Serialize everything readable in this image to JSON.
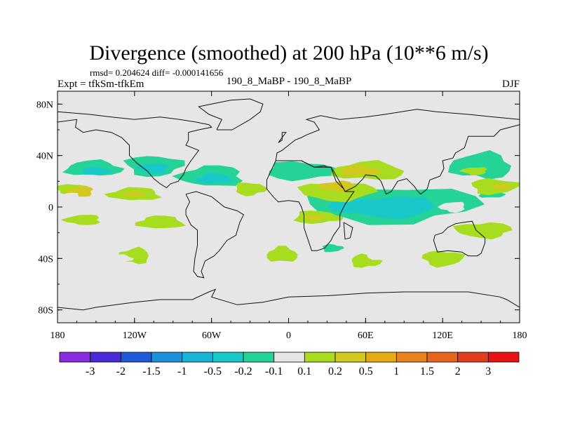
{
  "chart_data": {
    "type": "heatmap",
    "title": "Divergence (smoothed) at 200 hPa (10**6 m/s)",
    "stats_label": "rmsd= 0.204624  diff= -0.000141656",
    "left_label": "Expt = tfkSm-tfkEm",
    "center_label": "190_8_MaBP - 190_8_MaBP",
    "right_label": "DJF",
    "x_range": [
      -180,
      180
    ],
    "y_range": [
      -90,
      90
    ],
    "x_ticks": [
      {
        "value": -180,
        "label": "180"
      },
      {
        "value": -120,
        "label": "120W"
      },
      {
        "value": -60,
        "label": "60W"
      },
      {
        "value": 0,
        "label": "0"
      },
      {
        "value": 60,
        "label": "60E"
      },
      {
        "value": 120,
        "label": "120E"
      },
      {
        "value": 180,
        "label": "180"
      }
    ],
    "y_ticks": [
      {
        "value": 80,
        "label": "80N"
      },
      {
        "value": 40,
        "label": "40N"
      },
      {
        "value": 0,
        "label": "0"
      },
      {
        "value": -40,
        "label": "40S"
      },
      {
        "value": -80,
        "label": "80S"
      }
    ],
    "colorbar": {
      "colors": [
        "#8a2be2",
        "#4b2bd9",
        "#1e5ad6",
        "#1e90dc",
        "#18b4d6",
        "#19c8c8",
        "#26d396",
        "#e6e6e6",
        "#a8dc1e",
        "#d2c81e",
        "#e6aa14",
        "#e8821e",
        "#e6641e",
        "#e03c1e",
        "#e61414"
      ],
      "labels": [
        "-3",
        "-2",
        "-1.5",
        "-1",
        "-0.5",
        "-0.2",
        "-0.1",
        "0.1",
        "0.2",
        "0.5",
        "1",
        "1.5",
        "2",
        "3"
      ]
    },
    "regions": [
      {
        "level": "-0.2",
        "lon": -152,
        "lat": 30,
        "rlon": 22,
        "rlat": 6
      },
      {
        "level": "-0.5",
        "lon": -150,
        "lat": 28,
        "rlon": 12,
        "rlat": 3
      },
      {
        "level": "-0.2",
        "lon": -105,
        "lat": 32,
        "rlon": 22,
        "rlat": 8
      },
      {
        "level": "-0.5",
        "lon": -105,
        "lat": 30,
        "rlon": 12,
        "rlat": 4
      },
      {
        "level": "-0.2",
        "lon": -60,
        "lat": 24,
        "rlon": 25,
        "rlat": 8
      },
      {
        "level": "-0.5",
        "lon": -58,
        "lat": 22,
        "rlon": 14,
        "rlat": 4
      },
      {
        "level": "-0.2",
        "lon": 10,
        "lat": 28,
        "rlon": 28,
        "rlat": 7
      },
      {
        "level": "-0.2",
        "lon": 80,
        "lat": 2,
        "rlon": 68,
        "rlat": 14
      },
      {
        "level": "-0.5",
        "lon": 75,
        "lat": 0,
        "rlon": 42,
        "rlat": 8
      },
      {
        "level": "-0.2",
        "lon": 150,
        "lat": 32,
        "rlon": 24,
        "rlat": 10
      },
      {
        "level": "-0.2",
        "lon": 158,
        "lat": 10,
        "rlon": 10,
        "rlat": 3
      },
      {
        "level": "-0.2",
        "lon": 34,
        "lat": -32,
        "rlon": 8,
        "rlat": 3
      },
      {
        "level": "0.2",
        "lon": -170,
        "lat": 14,
        "rlon": 12,
        "rlat": 4
      },
      {
        "level": "0.5",
        "lon": -162,
        "lat": 12,
        "rlon": 10,
        "rlat": 4
      },
      {
        "level": "0.2",
        "lon": -120,
        "lat": 10,
        "rlon": 20,
        "rlat": 5
      },
      {
        "level": "0.5",
        "lon": -120,
        "lat": 10,
        "rlon": 8,
        "rlat": 2
      },
      {
        "level": "0.2",
        "lon": -30,
        "lat": 14,
        "rlon": 12,
        "rlat": 5
      },
      {
        "level": "0.2",
        "lon": 38,
        "lat": 12,
        "rlon": 30,
        "rlat": 7
      },
      {
        "level": "0.5",
        "lon": 38,
        "lat": 16,
        "rlon": 14,
        "rlat": 4
      },
      {
        "level": "0.2",
        "lon": 62,
        "lat": 28,
        "rlon": 28,
        "rlat": 7
      },
      {
        "level": "0.5",
        "lon": 55,
        "lat": 28,
        "rlon": 15,
        "rlat": 4
      },
      {
        "level": "0.2",
        "lon": 160,
        "lat": 16,
        "rlon": 18,
        "rlat": 6
      },
      {
        "level": "0.5",
        "lon": 166,
        "lat": 16,
        "rlon": 8,
        "rlat": 2
      },
      {
        "level": "0.2",
        "lon": -160,
        "lat": -10,
        "rlon": 14,
        "rlat": 4
      },
      {
        "level": "0.2",
        "lon": -100,
        "lat": -12,
        "rlon": 18,
        "rlat": 5
      },
      {
        "level": "0.2",
        "lon": 22,
        "lat": -8,
        "rlon": 18,
        "rlat": 5
      },
      {
        "level": "0.5",
        "lon": 20,
        "lat": -8,
        "rlon": 8,
        "rlat": 2
      },
      {
        "level": "0.2",
        "lon": 152,
        "lat": -18,
        "rlon": 22,
        "rlat": 6
      },
      {
        "level": "0.2",
        "lon": -120,
        "lat": -38,
        "rlon": 12,
        "rlat": 6
      },
      {
        "level": "0.2",
        "lon": -5,
        "lat": -37,
        "rlon": 12,
        "rlat": 6
      },
      {
        "level": "0.2",
        "lon": 60,
        "lat": -42,
        "rlon": 12,
        "rlat": 5
      },
      {
        "level": "0.2",
        "lon": 120,
        "lat": -40,
        "rlon": 16,
        "rlat": 6
      },
      {
        "level": "0.2",
        "lon": 145,
        "lat": 28,
        "rlon": 10,
        "rlat": 3
      },
      {
        "level": "-0.1",
        "lon": -170,
        "lat": 8,
        "rlon": 8,
        "rlat": 3
      },
      {
        "level": "0.1",
        "lon": 30,
        "lat": 48,
        "rlon": 30,
        "rlat": 5
      },
      {
        "level": "0.1",
        "lon": 110,
        "lat": 52,
        "rlon": 15,
        "rlat": 4
      },
      {
        "level": "0.1",
        "lon": -75,
        "lat": 52,
        "rlon": 15,
        "rlat": 4
      },
      {
        "level": "0.1",
        "lon": -95,
        "lat": -28,
        "rlon": 10,
        "rlat": 5
      },
      {
        "level": "0.1",
        "lon": 72,
        "lat": -38,
        "rlon": 10,
        "rlat": 4
      },
      {
        "level": "0.1",
        "lon": -30,
        "lat": -28,
        "rlon": 8,
        "rlat": 4
      },
      {
        "level": "0.1",
        "lon": 165,
        "lat": 70,
        "rlon": 8,
        "rlat": 3
      },
      {
        "level": "-0.1",
        "lon": -70,
        "lat": 70,
        "rlon": 6,
        "rlat": 2
      },
      {
        "level": "-0.1",
        "lon": 128,
        "lat": 0,
        "rlon": 10,
        "rlat": 4
      },
      {
        "level": "-0.1",
        "lon": -120,
        "lat": 0,
        "rlon": 6,
        "rlat": 2
      },
      {
        "level": "-0.1",
        "lon": -130,
        "lat": -40,
        "rlon": 8,
        "rlat": 3
      },
      {
        "level": "-0.1",
        "lon": 15,
        "lat": -60,
        "rlon": 12,
        "rlat": 4
      },
      {
        "level": "-0.1",
        "lon": 140,
        "lat": -45,
        "rlon": 8,
        "rlat": 3
      },
      {
        "level": "-0.1",
        "lon": -175,
        "lat": -45,
        "rlon": 5,
        "rlat": 4
      },
      {
        "level": "-0.1",
        "lon": 150,
        "lat": -60,
        "rlon": 6,
        "rlat": 3
      }
    ],
    "coastlines": [
      [
        [
          -180,
          74
        ],
        [
          -155,
          72
        ],
        [
          -138,
          70
        ],
        [
          -120,
          68
        ],
        [
          -100,
          70
        ],
        [
          -85,
          68
        ],
        [
          -72,
          66
        ],
        [
          -62,
          64
        ],
        [
          -60,
          62
        ],
        [
          -70,
          60
        ],
        [
          -78,
          58
        ],
        [
          -78,
          52
        ],
        [
          -80,
          48
        ],
        [
          -70,
          44
        ],
        [
          -76,
          36
        ],
        [
          -80,
          30
        ],
        [
          -82,
          25
        ],
        [
          -86,
          20
        ],
        [
          -92,
          18
        ],
        [
          -95,
          15
        ],
        [
          -100,
          18
        ],
        [
          -105,
          22
        ],
        [
          -110,
          28
        ],
        [
          -118,
          34
        ],
        [
          -124,
          40
        ],
        [
          -124,
          48
        ],
        [
          -130,
          54
        ],
        [
          -138,
          58
        ],
        [
          -150,
          60
        ],
        [
          -160,
          58
        ],
        [
          -166,
          62
        ],
        [
          -165,
          68
        ],
        [
          -180,
          66
        ]
      ],
      [
        [
          -80,
          10
        ],
        [
          -77,
          4
        ],
        [
          -80,
          -2
        ],
        [
          -80,
          -6
        ],
        [
          -76,
          -14
        ],
        [
          -71,
          -18
        ],
        [
          -71,
          -30
        ],
        [
          -73,
          -40
        ],
        [
          -74,
          -50
        ],
        [
          -71,
          -54
        ],
        [
          -66,
          -55
        ],
        [
          -68,
          -50
        ],
        [
          -65,
          -42
        ],
        [
          -58,
          -38
        ],
        [
          -54,
          -34
        ],
        [
          -48,
          -26
        ],
        [
          -41,
          -22
        ],
        [
          -38,
          -12
        ],
        [
          -35,
          -6
        ],
        [
          -40,
          -3
        ],
        [
          -50,
          0
        ],
        [
          -60,
          8
        ],
        [
          -72,
          12
        ],
        [
          -80,
          10
        ]
      ],
      [
        [
          -56,
          60
        ],
        [
          -44,
          60
        ],
        [
          -30,
          68
        ],
        [
          -22,
          74
        ],
        [
          -20,
          80
        ],
        [
          -30,
          84
        ],
        [
          -45,
          83
        ],
        [
          -60,
          80
        ],
        [
          -70,
          78
        ],
        [
          -62,
          72
        ],
        [
          -52,
          68
        ],
        [
          -56,
          60
        ]
      ],
      [
        [
          -10,
          36
        ],
        [
          -9,
          42
        ],
        [
          -5,
          44
        ],
        [
          0,
          48
        ],
        [
          5,
          52
        ],
        [
          10,
          54
        ],
        [
          14,
          56
        ],
        [
          24,
          60
        ],
        [
          20,
          66
        ],
        [
          14,
          68
        ],
        [
          25,
          71
        ],
        [
          40,
          68
        ],
        [
          60,
          70
        ],
        [
          75,
          72
        ],
        [
          100,
          76
        ],
        [
          115,
          74
        ],
        [
          140,
          72
        ],
        [
          160,
          70
        ],
        [
          180,
          68
        ],
        [
          180,
          64
        ],
        [
          165,
          60
        ],
        [
          160,
          55
        ],
        [
          140,
          55
        ],
        [
          137,
          46
        ],
        [
          130,
          42
        ],
        [
          128,
          38
        ],
        [
          120,
          36
        ],
        [
          121,
          30
        ],
        [
          118,
          24
        ],
        [
          110,
          21
        ],
        [
          108,
          14
        ],
        [
          103,
          10
        ],
        [
          100,
          13
        ],
        [
          98,
          16
        ],
        [
          92,
          22
        ],
        [
          85,
          20
        ],
        [
          80,
          12
        ],
        [
          76,
          10
        ],
        [
          72,
          20
        ],
        [
          68,
          24
        ],
        [
          60,
          25
        ],
        [
          58,
          22
        ],
        [
          52,
          16
        ],
        [
          44,
          12
        ],
        [
          43,
          14
        ],
        [
          35,
          28
        ],
        [
          33,
          31
        ],
        [
          30,
          31
        ],
        [
          28,
          32
        ],
        [
          20,
          31
        ],
        [
          10,
          36
        ],
        [
          0,
          36
        ],
        [
          -10,
          36
        ]
      ],
      [
        [
          -17,
          21
        ],
        [
          -17,
          14
        ],
        [
          -12,
          8
        ],
        [
          -8,
          4
        ],
        [
          0,
          5
        ],
        [
          8,
          4
        ],
        [
          10,
          0
        ],
        [
          12,
          -6
        ],
        [
          12,
          -16
        ],
        [
          14,
          -22
        ],
        [
          18,
          -34
        ],
        [
          22,
          -34
        ],
        [
          28,
          -32
        ],
        [
          33,
          -26
        ],
        [
          35,
          -22
        ],
        [
          40,
          -15
        ],
        [
          40,
          -6
        ],
        [
          44,
          2
        ],
        [
          51,
          12
        ],
        [
          44,
          12
        ],
        [
          43,
          14
        ],
        [
          37,
          20
        ],
        [
          33,
          31
        ],
        [
          20,
          31
        ],
        [
          10,
          36
        ],
        [
          0,
          36
        ],
        [
          -10,
          36
        ],
        [
          -17,
          21
        ]
      ],
      [
        [
          114,
          -22
        ],
        [
          113,
          -26
        ],
        [
          116,
          -35
        ],
        [
          124,
          -34
        ],
        [
          135,
          -35
        ],
        [
          140,
          -38
        ],
        [
          147,
          -38
        ],
        [
          150,
          -36
        ],
        [
          153,
          -28
        ],
        [
          153,
          -24
        ],
        [
          146,
          -18
        ],
        [
          143,
          -11
        ],
        [
          136,
          -12
        ],
        [
          130,
          -13
        ],
        [
          124,
          -16
        ],
        [
          120,
          -20
        ],
        [
          114,
          -22
        ]
      ],
      [
        [
          -180,
          -78
        ],
        [
          -160,
          -80
        ],
        [
          -150,
          -78
        ],
        [
          -120,
          -74
        ],
        [
          -100,
          -72
        ],
        [
          -75,
          -72
        ],
        [
          -62,
          -66
        ],
        [
          -57,
          -64
        ],
        [
          -60,
          -70
        ],
        [
          -40,
          -76
        ],
        [
          -20,
          -74
        ],
        [
          0,
          -70
        ],
        [
          30,
          -69
        ],
        [
          60,
          -67
        ],
        [
          90,
          -66
        ],
        [
          120,
          -66
        ],
        [
          140,
          -66
        ],
        [
          165,
          -70
        ],
        [
          170,
          -72
        ],
        [
          180,
          -78
        ]
      ],
      [
        [
          -8,
          50
        ],
        [
          -2,
          58
        ],
        [
          -5,
          58
        ],
        [
          -5,
          52
        ],
        [
          -8,
          50
        ]
      ],
      [
        [
          43,
          -12
        ],
        [
          50,
          -16
        ],
        [
          48,
          -24
        ],
        [
          44,
          -25
        ],
        [
          43,
          -12
        ]
      ]
    ]
  }
}
